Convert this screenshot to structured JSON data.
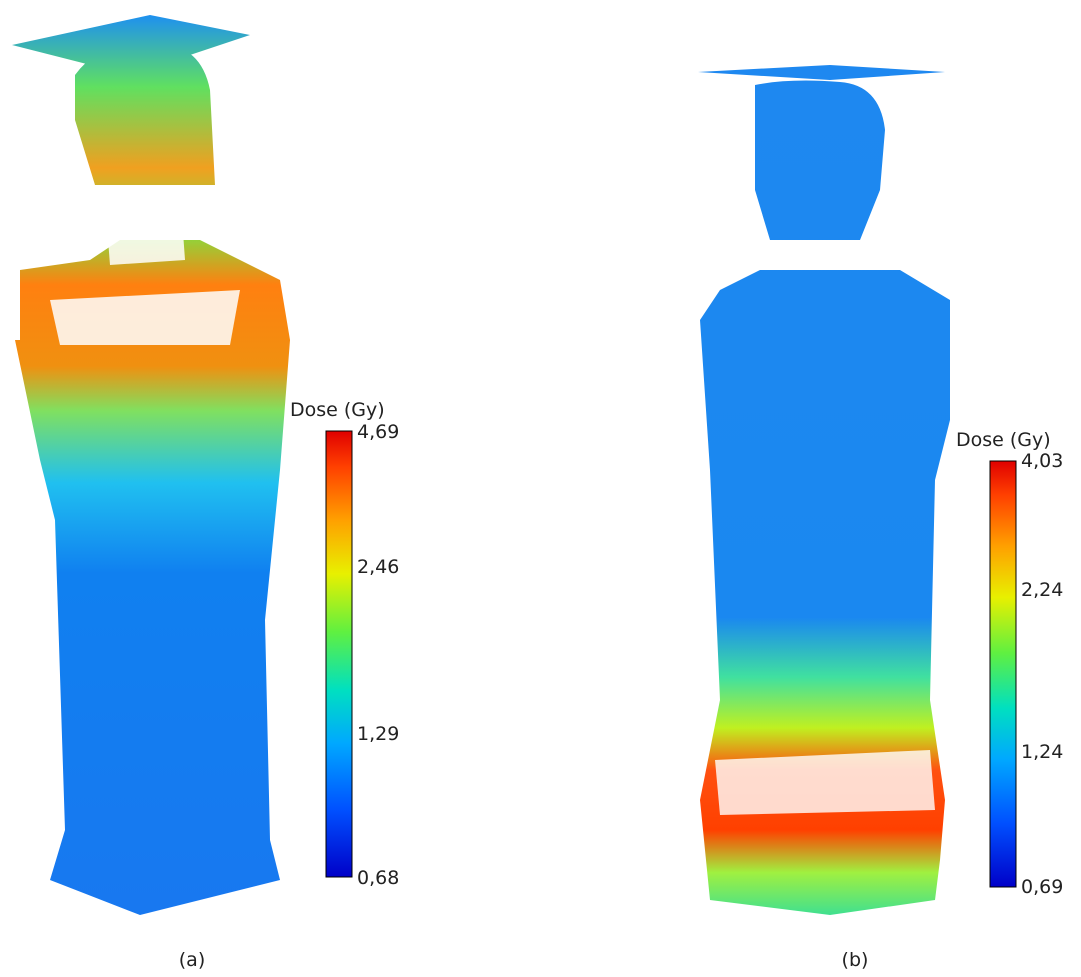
{
  "panels": [
    {
      "label": "(a)",
      "colorbar": {
        "title": "Dose (Gy)",
        "ticks": [
          "4,69",
          "2,46",
          "1,29",
          "0,68"
        ]
      }
    },
    {
      "label": "(b)",
      "colorbar": {
        "title": "Dose (Gy)",
        "ticks": [
          "4,03",
          "2,24",
          "1,24",
          "0,69"
        ]
      }
    }
  ]
}
